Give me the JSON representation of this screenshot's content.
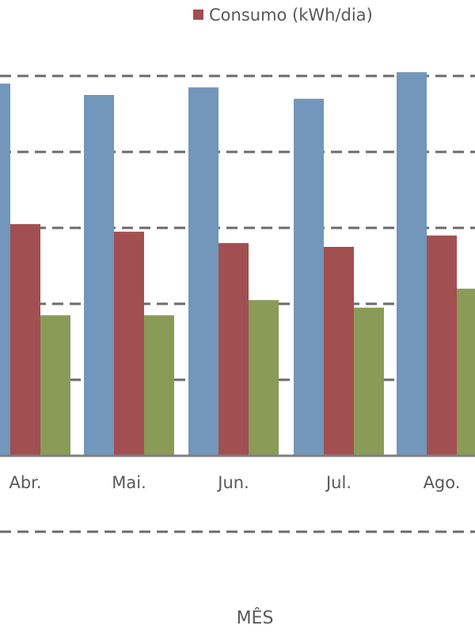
{
  "chart_data": {
    "type": "bar",
    "categories": [
      "Abr.",
      "Mai.",
      "Jun.",
      "Jul.",
      "Ago."
    ],
    "series": [
      {
        "name": "",
        "color": "#7396bb",
        "values": [
          98,
          95,
          97,
          94,
          101
        ]
      },
      {
        "name": "Consumo (kWh/dia)",
        "color": "#a24f51",
        "values": [
          61,
          59,
          56,
          55,
          58
        ]
      },
      {
        "name": "",
        "color": "#8a9b58",
        "values": [
          37,
          37,
          41,
          39,
          44
        ]
      }
    ],
    "xlabel": "MÊS",
    "ylim": [
      -20,
      120
    ],
    "gridlines": [
      -20,
      20,
      40,
      60,
      80,
      100
    ],
    "baseline": 0,
    "grid": true,
    "grid_style": "dashed",
    "legend_position": "top-right"
  }
}
